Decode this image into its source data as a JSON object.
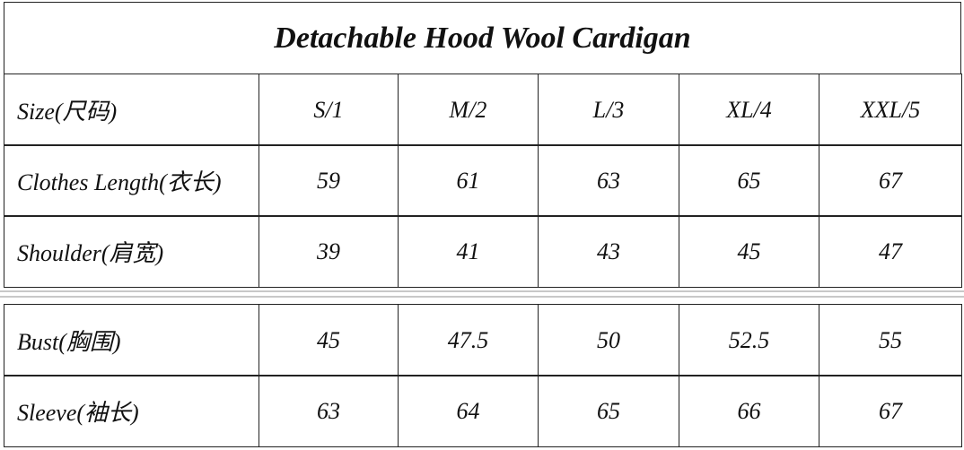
{
  "title": "Detachable Hood Wool Cardigan",
  "table": {
    "header": [
      "Size(尺码)",
      "S/1",
      "M/2",
      "L/3",
      "XL/4",
      "XXL/5"
    ],
    "rows": [
      [
        "Clothes Length(衣长)",
        "59",
        "61",
        "63",
        "65",
        "67"
      ],
      [
        "Shoulder(肩宽)",
        "39",
        "41",
        "43",
        "45",
        "47"
      ],
      [
        "Bust(胸围)",
        "45",
        "47.5",
        "50",
        "52.5",
        "55"
      ],
      [
        "Sleeve(袖长)",
        "63",
        "64",
        "65",
        "66",
        "67"
      ]
    ]
  }
}
